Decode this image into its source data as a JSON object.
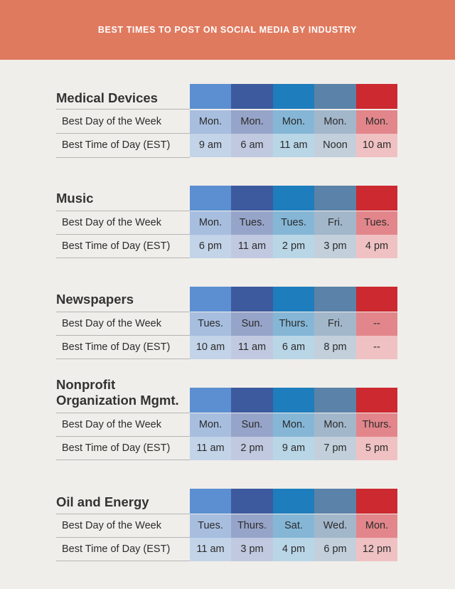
{
  "header": {
    "title": "BEST TIMES TO POST ON SOCIAL MEDIA BY INDUSTRY"
  },
  "row_labels": {
    "day": "Best Day of the Week",
    "time": "Best Time of Day (EST)"
  },
  "column_colors": {
    "bar": [
      "#5b8fd1",
      "#3d5a9e",
      "#1e7dbd",
      "#5b82a8",
      "#cc2930"
    ],
    "day_cell": [
      "#a7bedf",
      "#97a4c9",
      "#85b6d6",
      "#a3b7cb",
      "#e2868b"
    ],
    "time_cell": [
      "#c3d3e8",
      "#c1c9e0",
      "#b9d6e7",
      "#c3d0dc",
      "#efc1c3"
    ]
  },
  "sections": [
    {
      "title": "Medical Devices",
      "days": [
        "Mon.",
        "Mon.",
        "Mon.",
        "Mon.",
        "Mon."
      ],
      "times": [
        "9 am",
        "6 am",
        "11 am",
        "Noon",
        "10 am"
      ]
    },
    {
      "title": "Music",
      "days": [
        "Mon.",
        "Tues.",
        "Tues.",
        "Fri.",
        "Tues."
      ],
      "times": [
        "6 pm",
        "11 am",
        "2 pm",
        "3 pm",
        "4 pm"
      ]
    },
    {
      "title": "Newspapers",
      "days": [
        "Tues.",
        "Sun.",
        "Thurs.",
        "Fri.",
        "--"
      ],
      "times": [
        "10 am",
        "11 am",
        "6 am",
        "8 pm",
        "--"
      ]
    },
    {
      "title": "Nonprofit Organization Mgmt.",
      "days": [
        "Mon.",
        "Sun.",
        "Mon.",
        "Mon.",
        "Thurs."
      ],
      "times": [
        "11 am",
        "2 pm",
        "9 am",
        "7 pm",
        "5 pm"
      ]
    },
    {
      "title": "Oil and Energy",
      "days": [
        "Tues.",
        "Thurs.",
        "Sat.",
        "Wed.",
        "Mon."
      ],
      "times": [
        "11 am",
        "3 pm",
        "4 pm",
        "6 pm",
        "12 pm"
      ]
    }
  ]
}
